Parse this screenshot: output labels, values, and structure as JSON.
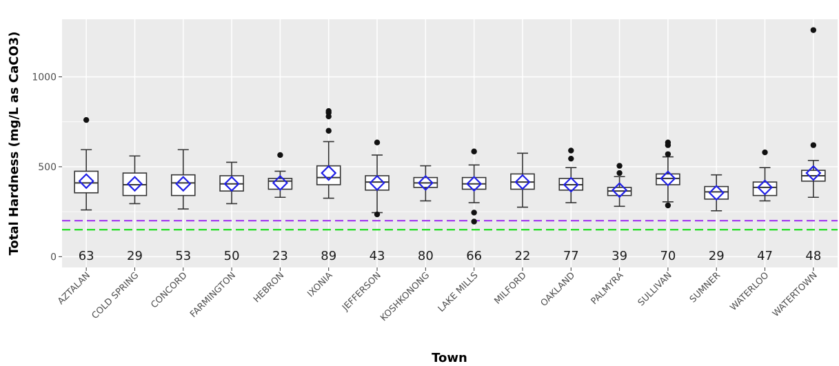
{
  "chart_data": {
    "type": "box",
    "xlabel": "Town",
    "ylabel": "Total Hardness (mg/L as CaCO3)",
    "ylim": [
      -60,
      1320
    ],
    "yticks": [
      0,
      500,
      1000
    ],
    "grid": true,
    "colors": {
      "panel_background": "#ebebeb",
      "grid": "#ffffff",
      "box_line": "#333333",
      "box_fill": "#ffffff",
      "mean_marker": "#1f1fe6",
      "outlier": "#111111",
      "reference_line_1": "#a035f0",
      "reference_line_2": "#22dd22"
    },
    "reference_lines": [
      {
        "y": 200,
        "style": "dashed",
        "color": "#a035f0"
      },
      {
        "y": 150,
        "style": "dashed",
        "color": "#22dd22"
      }
    ],
    "mean_marker_shape": "diamond",
    "series": [
      {
        "category": "AZTALAN",
        "n": "63",
        "whisker_low": 260,
        "q1": 355,
        "median": 410,
        "q3": 475,
        "whisker_high": 595,
        "mean": 420,
        "outliers": [
          760
        ]
      },
      {
        "category": "COLD SPRING",
        "n": "29",
        "whisker_low": 295,
        "q1": 340,
        "median": 400,
        "q3": 465,
        "whisker_high": 560,
        "mean": 405,
        "outliers": []
      },
      {
        "category": "CONCORD",
        "n": "53",
        "whisker_low": 265,
        "q1": 340,
        "median": 410,
        "q3": 455,
        "whisker_high": 595,
        "mean": 405,
        "outliers": []
      },
      {
        "category": "FARMINGTON",
        "n": "50",
        "whisker_low": 295,
        "q1": 365,
        "median": 405,
        "q3": 450,
        "whisker_high": 525,
        "mean": 405,
        "outliers": []
      },
      {
        "category": "HEBRON",
        "n": "23",
        "whisker_low": 330,
        "q1": 375,
        "median": 420,
        "q3": 435,
        "whisker_high": 475,
        "mean": 410,
        "outliers": [
          565
        ]
      },
      {
        "category": "IXONIA",
        "n": "89",
        "whisker_low": 325,
        "q1": 400,
        "median": 440,
        "q3": 505,
        "whisker_high": 640,
        "mean": 465,
        "outliers": [
          700,
          780,
          800,
          810
        ]
      },
      {
        "category": "JEFFERSON",
        "n": "43",
        "whisker_low": 245,
        "q1": 370,
        "median": 415,
        "q3": 450,
        "whisker_high": 565,
        "mean": 410,
        "outliers": [
          635,
          235
        ]
      },
      {
        "category": "KOSHKONONG",
        "n": "80",
        "whisker_low": 310,
        "q1": 385,
        "median": 410,
        "q3": 440,
        "whisker_high": 505,
        "mean": 410,
        "outliers": []
      },
      {
        "category": "LAKE MILLS",
        "n": "66",
        "whisker_low": 300,
        "q1": 375,
        "median": 405,
        "q3": 440,
        "whisker_high": 510,
        "mean": 405,
        "outliers": [
          585,
          245,
          195
        ]
      },
      {
        "category": "MILFORD",
        "n": "22",
        "whisker_low": 275,
        "q1": 375,
        "median": 415,
        "q3": 460,
        "whisker_high": 575,
        "mean": 415,
        "outliers": []
      },
      {
        "category": "OAKLAND",
        "n": "77",
        "whisker_low": 300,
        "q1": 370,
        "median": 400,
        "q3": 435,
        "whisker_high": 495,
        "mean": 400,
        "outliers": [
          545,
          590
        ]
      },
      {
        "category": "PALMYRA",
        "n": "39",
        "whisker_low": 280,
        "q1": 340,
        "median": 365,
        "q3": 385,
        "whisker_high": 445,
        "mean": 370,
        "outliers": [
          465,
          505
        ]
      },
      {
        "category": "SULLIVAN",
        "n": "70",
        "whisker_low": 305,
        "q1": 400,
        "median": 435,
        "q3": 460,
        "whisker_high": 555,
        "mean": 435,
        "outliers": [
          570,
          620,
          635,
          285
        ]
      },
      {
        "category": "SUMNER",
        "n": "29",
        "whisker_low": 255,
        "q1": 320,
        "median": 360,
        "q3": 390,
        "whisker_high": 455,
        "mean": 355,
        "outliers": []
      },
      {
        "category": "WATERLOO",
        "n": "47",
        "whisker_low": 310,
        "q1": 340,
        "median": 385,
        "q3": 415,
        "whisker_high": 495,
        "mean": 385,
        "outliers": [
          580
        ]
      },
      {
        "category": "WATERTOWN",
        "n": "48",
        "whisker_low": 330,
        "q1": 420,
        "median": 450,
        "q3": 480,
        "whisker_high": 535,
        "mean": 465,
        "outliers": [
          620,
          1260
        ]
      }
    ]
  }
}
